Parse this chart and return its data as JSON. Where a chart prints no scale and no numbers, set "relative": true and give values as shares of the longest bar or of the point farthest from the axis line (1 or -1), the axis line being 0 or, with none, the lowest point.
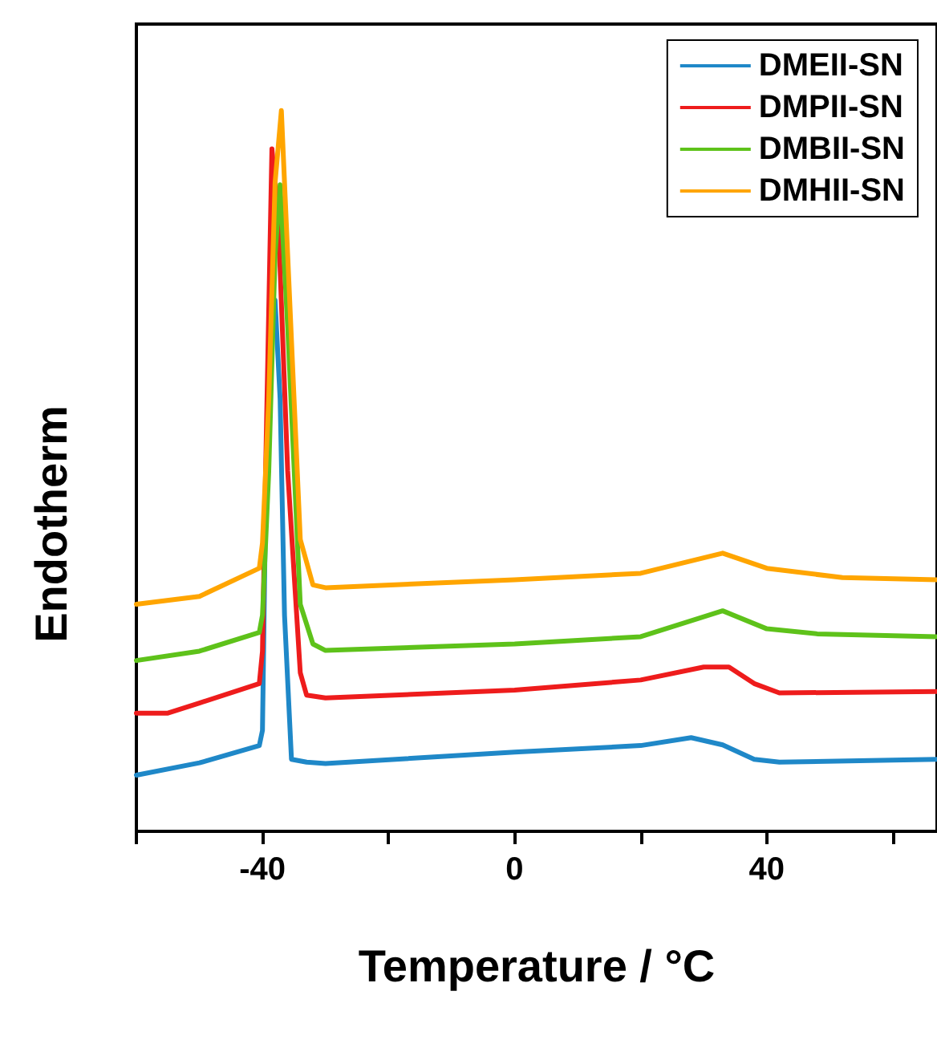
{
  "chart_data": {
    "type": "line",
    "relative": true,
    "xlabel": "Temperature / °C",
    "ylabel": "Endotherm",
    "xlim": [
      -60,
      67
    ],
    "xticks": [
      {
        "value": -60,
        "label": null
      },
      -40,
      {
        "value": -20,
        "label": null
      },
      0,
      {
        "value": 20,
        "label": null
      },
      40,
      {
        "value": 60,
        "label": null
      }
    ],
    "tick_labels": "x",
    "legend": "top right",
    "marker": "none",
    "line_style": "solid",
    "grid": false,
    "series": [
      {
        "name": "DMEII-SN",
        "color": "#1f88c8",
        "x": [
          -60,
          -50,
          -40.5,
          -40,
          -39.5,
          -38.5,
          -38,
          -37.2,
          -36.5,
          -35.4,
          -33,
          -30,
          0,
          20,
          28,
          33,
          38,
          42,
          67
        ],
        "values": [
          0.078,
          0.095,
          0.119,
          0.14,
          0.45,
          0.7,
          0.737,
          0.6,
          0.3,
          0.1,
          0.096,
          0.094,
          0.11,
          0.119,
          0.13,
          0.12,
          0.1,
          0.096,
          0.1
        ]
      },
      {
        "name": "DMPII-SN",
        "color": "#ee1c1c",
        "x": [
          -60,
          -55,
          -50,
          -40.5,
          -40,
          -39.5,
          -38.5,
          -37.5,
          -36,
          -34,
          -33,
          -30,
          0,
          20,
          30,
          34,
          38,
          42,
          67
        ],
        "values": [
          0.164,
          0.164,
          0.178,
          0.205,
          0.25,
          0.5,
          0.947,
          0.85,
          0.5,
          0.22,
          0.189,
          0.185,
          0.196,
          0.21,
          0.228,
          0.228,
          0.205,
          0.192,
          0.194
        ]
      },
      {
        "name": "DMBII-SN",
        "color": "#5ec21a",
        "x": [
          -60,
          -50,
          -40.5,
          -40,
          -39,
          -38,
          -37.2,
          -36,
          -34,
          -32,
          -30,
          0,
          20,
          33,
          40,
          48,
          67
        ],
        "values": [
          0.237,
          0.25,
          0.276,
          0.3,
          0.5,
          0.8,
          0.897,
          0.7,
          0.315,
          0.26,
          0.251,
          0.26,
          0.27,
          0.306,
          0.281,
          0.274,
          0.27
        ]
      },
      {
        "name": "DMHII-SN",
        "color": "#ffa500",
        "x": [
          -60,
          -50,
          -40.5,
          -40,
          -39,
          -38,
          -37,
          -36,
          -34,
          -32,
          -30,
          0,
          20,
          33,
          40,
          52,
          67
        ],
        "values": [
          0.315,
          0.326,
          0.365,
          0.4,
          0.6,
          0.9,
          1,
          0.8,
          0.405,
          0.342,
          0.338,
          0.349,
          0.358,
          0.386,
          0.365,
          0.352,
          0.349
        ]
      }
    ]
  }
}
